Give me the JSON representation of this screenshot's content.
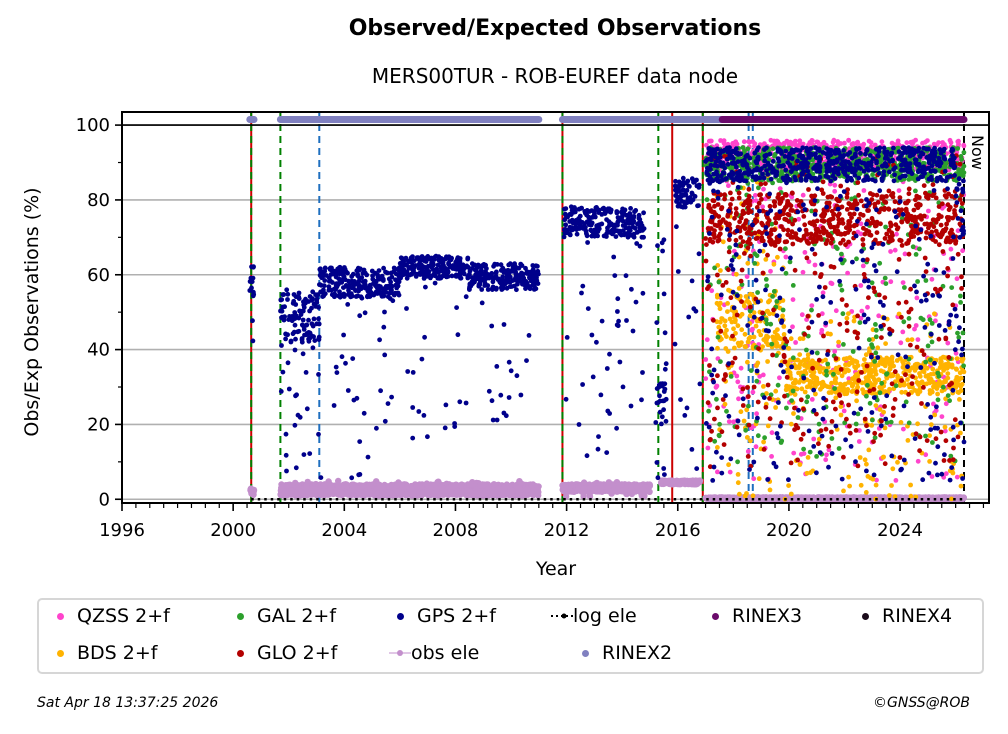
{
  "chart_data": {
    "type": "scatter",
    "title": "Observed/Expected Observations",
    "subtitle": "MERS00TUR - ROB-EUREF data node",
    "xlabel": "Year",
    "ylabel": "Obs/Exp Observations (%)",
    "xlim": [
      1996,
      2027.2
    ],
    "ylim": [
      -1,
      103.5
    ],
    "xticks": [
      "1996",
      "2000",
      "2004",
      "2008",
      "2012",
      "2016",
      "2020",
      "2024"
    ],
    "xtick_values": [
      1996,
      2000,
      2004,
      2008,
      2012,
      2016,
      2020,
      2024
    ],
    "yticks": [
      "0",
      "20",
      "40",
      "60",
      "80",
      "100"
    ],
    "ytick_values": [
      0,
      20,
      40,
      60,
      80,
      100
    ],
    "grid": "horizontal",
    "now_label": "Now",
    "now_year": 2026.3,
    "reference_line_y": 100,
    "vertical_events": [
      {
        "year": 2000.65,
        "style": "solid",
        "color": "#cc0000",
        "overlay": "#008000"
      },
      {
        "year": 2001.7,
        "style": "dashed",
        "color": "#008000"
      },
      {
        "year": 2003.1,
        "style": "dashed",
        "color": "#1f6fbf"
      },
      {
        "year": 2011.85,
        "style": "solid",
        "color": "#cc0000",
        "overlay": "#008000"
      },
      {
        "year": 2015.3,
        "style": "dashed",
        "color": "#008000"
      },
      {
        "year": 2015.8,
        "style": "solid",
        "color": "#cc0000"
      },
      {
        "year": 2016.9,
        "style": "solid",
        "color": "#cc0000",
        "overlay": "#008000"
      },
      {
        "year": 2018.55,
        "style": "dashed",
        "color": "#1f6fbf"
      },
      {
        "year": 2018.7,
        "style": "dashed",
        "color": "#1f6fbf"
      },
      {
        "year": 2026.3,
        "style": "dashed",
        "color": "#000000"
      }
    ],
    "series": [
      {
        "name": "QZSS 2+f",
        "color": "#ff44cc",
        "segments": [
          {
            "x": [
              2017.0,
              2026.3
            ],
            "core": [
              88,
              96
            ],
            "spread": [
              5,
              96
            ],
            "scatter_frac": 0.35
          }
        ]
      },
      {
        "name": "BDS 2+f",
        "color": "#ffb300",
        "segments": [
          {
            "x": [
              2017.4,
              2019.9
            ],
            "core": [
              40,
              55
            ],
            "spread": [
              0,
              90
            ],
            "scatter_frac": 0.4
          },
          {
            "x": [
              2019.9,
              2026.3
            ],
            "core": [
              28,
              38
            ],
            "spread": [
              0,
              50
            ],
            "scatter_frac": 0.25
          }
        ]
      },
      {
        "name": "GAL 2+f",
        "color": "#2ca02c",
        "segments": [
          {
            "x": [
              2017.0,
              2026.3
            ],
            "core": [
              85,
              94
            ],
            "spread": [
              10,
              94
            ],
            "scatter_frac": 0.3
          }
        ]
      },
      {
        "name": "GLO 2+f",
        "color": "#b30000",
        "segments": [
          {
            "x": [
              2017.0,
              2026.3
            ],
            "core": [
              68,
              82
            ],
            "spread": [
              8,
              92
            ],
            "scatter_frac": 0.35
          }
        ]
      },
      {
        "name": "GPS 2+f",
        "color": "#00008b",
        "segments": [
          {
            "x": [
              2000.6,
              2000.75
            ],
            "core": [
              54,
              63
            ],
            "spread": [
              30,
              63
            ],
            "scatter_frac": 0.2
          },
          {
            "x": [
              2001.7,
              2003.1
            ],
            "core": [
              42,
              55
            ],
            "spread": [
              5,
              56
            ],
            "scatter_frac": 0.3
          },
          {
            "x": [
              2003.1,
              2006.0
            ],
            "core": [
              54,
              62
            ],
            "spread": [
              5,
              60
            ],
            "scatter_frac": 0.15
          },
          {
            "x": [
              2006.0,
              2008.5
            ],
            "core": [
              59,
              65
            ],
            "spread": [
              15,
              65
            ],
            "scatter_frac": 0.1
          },
          {
            "x": [
              2008.5,
              2011.0
            ],
            "core": [
              56,
              63
            ],
            "spread": [
              20,
              63
            ],
            "scatter_frac": 0.1
          },
          {
            "x": [
              2011.9,
              2014.8
            ],
            "core": [
              70,
              78
            ],
            "spread": [
              10,
              80
            ],
            "scatter_frac": 0.2
          },
          {
            "x": [
              2015.2,
              2015.6
            ],
            "core": [
              20,
              32
            ],
            "spread": [
              5,
              72
            ],
            "scatter_frac": 0.3
          },
          {
            "x": [
              2015.9,
              2016.8
            ],
            "core": [
              78,
              86
            ],
            "spread": [
              0,
              86
            ],
            "scatter_frac": 0.15
          },
          {
            "x": [
              2017.0,
              2026.0
            ],
            "core": [
              85,
              94
            ],
            "spread": [
              5,
              94
            ],
            "scatter_frac": 0.3
          },
          {
            "x": [
              2026.0,
              2026.3
            ],
            "core": [
              70,
              86
            ],
            "spread": [
              5,
              86
            ],
            "scatter_frac": 0.4
          }
        ]
      },
      {
        "name": "obs ele",
        "color": "#c38fcc",
        "segments": [
          {
            "x": [
              2000.6,
              2000.75
            ],
            "core": [
              1,
              3
            ],
            "spread": [
              1,
              3
            ],
            "scatter_frac": 0
          },
          {
            "x": [
              2001.7,
              2011.0
            ],
            "core": [
              1,
              4
            ],
            "spread": [
              1,
              5
            ],
            "scatter_frac": 0.05
          },
          {
            "x": [
              2011.85,
              2015.0
            ],
            "core": [
              2,
              4
            ],
            "spread": [
              0,
              5
            ],
            "scatter_frac": 0.05
          },
          {
            "x": [
              2015.4,
              2016.8
            ],
            "core": [
              4,
              5
            ],
            "spread": [
              4,
              5
            ],
            "scatter_frac": 0
          },
          {
            "x": [
              2017.0,
              2026.3
            ],
            "core": [
              0,
              0.5
            ],
            "spread": [
              0,
              0.5
            ],
            "scatter_frac": 0
          }
        ]
      },
      {
        "name": "log ele",
        "color": "#000000",
        "style": "dotted-line",
        "x": [
          2000.65,
          2026.3
        ],
        "y": 0
      },
      {
        "name": "RINEX3",
        "color": "#6b0a6b",
        "x_range": [
          2017.6,
          2026.3
        ],
        "y": 101.5
      },
      {
        "name": "RINEX4",
        "color": "#1a0a1a",
        "x_range": [],
        "y": 101.5
      },
      {
        "name": "RINEX2",
        "color": "#8080c0",
        "x_ranges": [
          [
            2000.6,
            2000.75
          ],
          [
            2001.7,
            2011.0
          ],
          [
            2011.85,
            2015.3
          ],
          [
            2015.4,
            2016.8
          ],
          [
            2016.9,
            2017.6
          ]
        ],
        "y": 101.5
      }
    ],
    "legend": {
      "placement": "below",
      "entries": [
        "QZSS 2+f",
        "GAL 2+f",
        "GPS 2+f",
        "log ele",
        "RINEX3",
        "RINEX4",
        "BDS 2+f",
        "GLO 2+f",
        "obs ele",
        "RINEX2"
      ]
    }
  },
  "footer": {
    "timestamp": "Sat Apr 18 13:37:25 2026",
    "copyright": "©GNSS@ROB"
  }
}
